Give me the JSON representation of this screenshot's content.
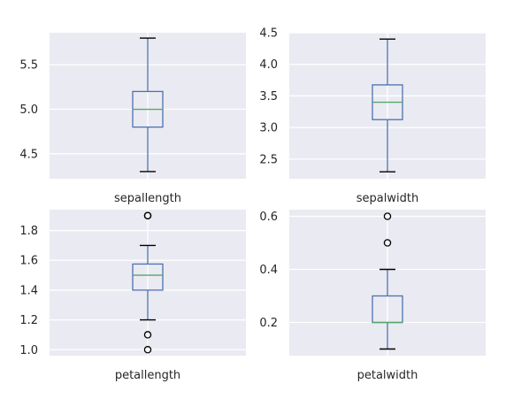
{
  "chart_data": [
    {
      "type": "box",
      "category": "sepallength",
      "ylim": [
        4.22,
        5.86
      ],
      "yticks": [
        4.5,
        5.0,
        5.5
      ],
      "ytick_labels": [
        "4.5",
        "5.0",
        "5.5"
      ],
      "whisker_low": 4.3,
      "q1": 4.8,
      "median": 5.0,
      "q3": 5.2,
      "whisker_high": 5.8,
      "outliers": [],
      "grid": true
    },
    {
      "type": "box",
      "category": "sepalwidth",
      "ylim": [
        2.19,
        4.5
      ],
      "yticks": [
        2.5,
        3.0,
        3.5,
        4.0,
        4.5
      ],
      "ytick_labels": [
        "2.5",
        "3.0",
        "3.5",
        "4.0",
        "4.5"
      ],
      "whisker_low": 2.3,
      "q1": 3.125,
      "median": 3.4,
      "q3": 3.675,
      "whisker_high": 4.4,
      "outliers": [],
      "grid": true
    },
    {
      "type": "box",
      "category": "petallength",
      "ylim": [
        0.96,
        1.94
      ],
      "yticks": [
        1.0,
        1.2,
        1.4,
        1.6,
        1.8
      ],
      "ytick_labels": [
        "1.0",
        "1.2",
        "1.4",
        "1.6",
        "1.8"
      ],
      "whisker_low": 1.2,
      "q1": 1.4,
      "median": 1.5,
      "q3": 1.575,
      "whisker_high": 1.7,
      "outliers": [
        1.0,
        1.1,
        1.9,
        1.9
      ],
      "grid": true
    },
    {
      "type": "box",
      "category": "petalwidth",
      "ylim": [
        0.075,
        0.625
      ],
      "yticks": [
        0.2,
        0.4,
        0.6
      ],
      "ytick_labels": [
        "0.2",
        "0.4",
        "0.6"
      ],
      "whisker_low": 0.1,
      "q1": 0.2,
      "median": 0.2,
      "q3": 0.3,
      "whisker_high": 0.4,
      "outliers": [
        0.5,
        0.6
      ],
      "grid": true
    }
  ],
  "colors": {
    "axes_bg": "#eaeaf2",
    "grid": "#ffffff",
    "box": "#4c72b0",
    "median": "#55a868",
    "outlier_edge": "#000000",
    "text": "#262626"
  }
}
